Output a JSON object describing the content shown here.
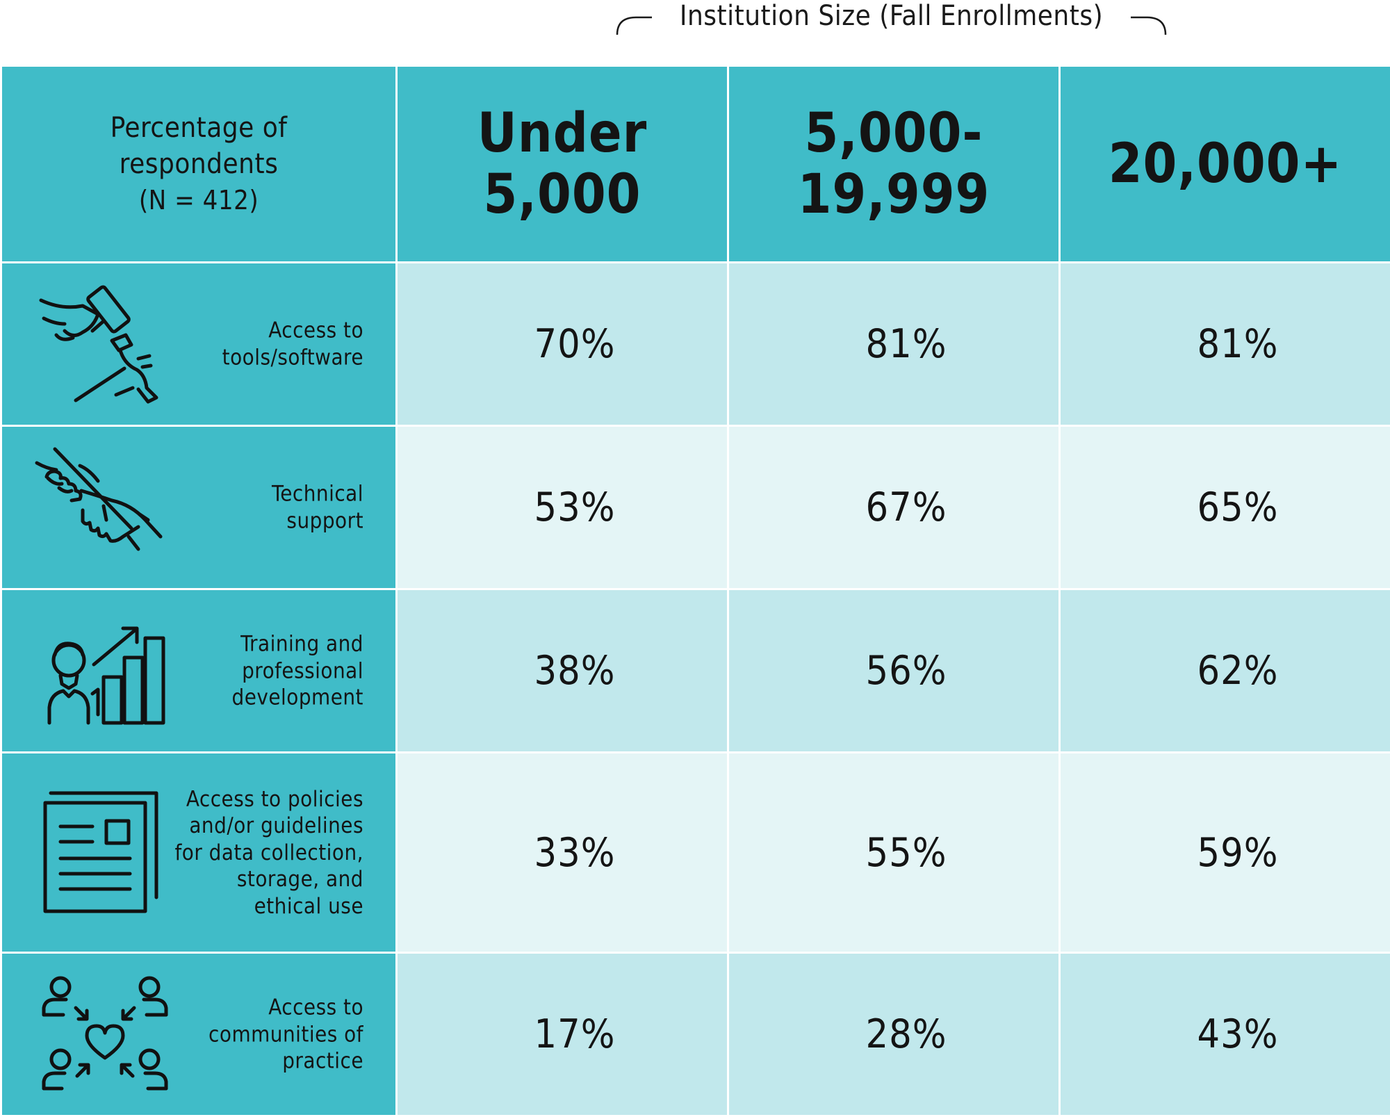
{
  "chart_data": {
    "type": "table",
    "group_header": "Institution Size (Fall Enrollments)",
    "corner_label": {
      "line1": "Percentage of",
      "line2": "respondents",
      "line3": "(N = 412)"
    },
    "columns": [
      {
        "line1": "Under",
        "line2": "5,000"
      },
      {
        "line1": "5,000-",
        "line2": "19,999"
      },
      {
        "line1": "20,000+",
        "line2": ""
      }
    ],
    "rows": [
      {
        "icon": "hands-with-hammer-icon",
        "label_lines": [
          "Access to",
          "tools/software"
        ],
        "values": [
          "70%",
          "81%",
          "81%"
        ]
      },
      {
        "icon": "helping-hand-icon",
        "label_lines": [
          "Technical",
          "support"
        ],
        "values": [
          "53%",
          "67%",
          "65%"
        ]
      },
      {
        "icon": "person-growth-chart-icon",
        "label_lines": [
          "Training and",
          "professional",
          "development"
        ],
        "values": [
          "38%",
          "56%",
          "62%"
        ]
      },
      {
        "icon": "document-guidelines-icon",
        "label_lines": [
          "Access to policies",
          "and/or guidelines",
          "for data collection,",
          "storage, and",
          "ethical use"
        ],
        "values": [
          "33%",
          "55%",
          "59%"
        ]
      },
      {
        "icon": "community-heart-icon",
        "label_lines": [
          "Access to",
          "communities of",
          "practice"
        ],
        "values": [
          "17%",
          "28%",
          "43%"
        ]
      }
    ]
  },
  "colors": {
    "header_bg": "#40bcc8",
    "row_dark": "#c1e8ec",
    "row_light": "#e4f5f6",
    "text": "#141414"
  }
}
